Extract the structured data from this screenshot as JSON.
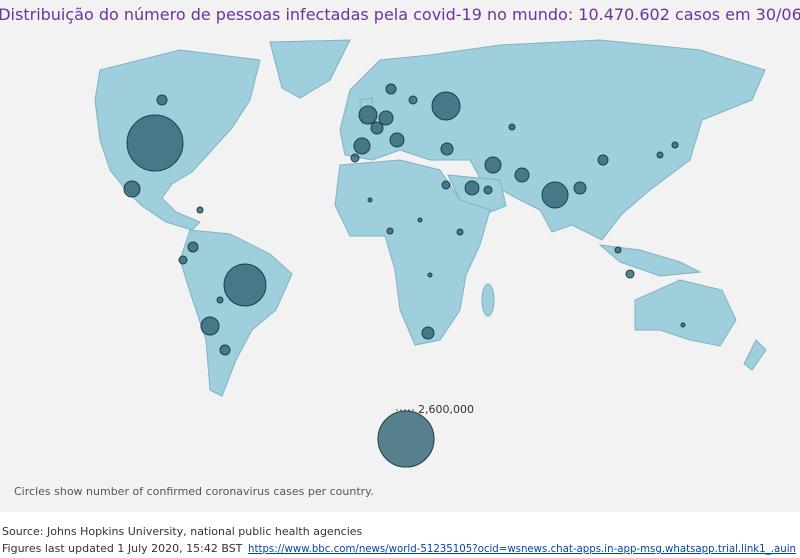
{
  "title": "Distribuição do número de pessoas infectadas pela covid-19 no mundo: 10.470.602 casos em 30/06",
  "legend": {
    "value": 2600000,
    "label": "2,600,000"
  },
  "note": "Circles show number of confirmed coronavirus cases per country.",
  "source": "Source: Johns Hopkins University, national public health agencies",
  "updated": "Figures last updated 1 July 2020, 15:42 BST",
  "link": "https://www.bbc.com/news/world-51235105?ocid=wsnews.chat-apps.in-app-msg.whatsapp.trial.link1_.auin"
}
